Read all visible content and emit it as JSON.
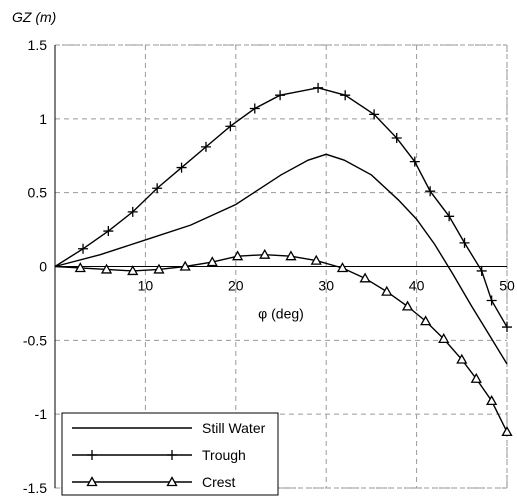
{
  "chart_data": {
    "type": "line",
    "ylabel": "GZ (m)",
    "xlabel": "φ (deg)",
    "xlim": [
      0,
      50
    ],
    "xticks": [
      10,
      20,
      30,
      40,
      50
    ],
    "ylim": [
      -1.5,
      1.5
    ],
    "yticks": [
      -1.5,
      -1,
      -0.5,
      0,
      0.5,
      1,
      1.5
    ],
    "grid": true,
    "legend": "lower left",
    "series": [
      {
        "name": "Still Water",
        "color": "#000000",
        "marker": "none",
        "x": [
          0,
          5,
          10,
          15,
          20,
          25,
          28,
          30,
          32,
          35,
          38,
          40,
          42,
          44,
          46,
          48,
          50
        ],
        "values": [
          0,
          0.08,
          0.18,
          0.28,
          0.42,
          0.62,
          0.72,
          0.76,
          0.72,
          0.62,
          0.45,
          0.32,
          0.15,
          -0.05,
          -0.26,
          -0.46,
          -0.66
        ]
      },
      {
        "name": "Trough",
        "color": "#000000",
        "marker": "plus",
        "x": [
          0,
          3.1,
          5.9,
          8.6,
          11.3,
          14,
          16.7,
          19.4,
          22.1,
          24.9,
          29.1,
          32.1,
          35.3,
          37.8,
          39.8,
          41.5,
          43.6,
          45.3,
          47.2,
          48.3,
          50
        ],
        "values": [
          0,
          0.12,
          0.24,
          0.37,
          0.53,
          0.67,
          0.81,
          0.95,
          1.07,
          1.16,
          1.21,
          1.16,
          1.03,
          0.87,
          0.71,
          0.51,
          0.34,
          0.16,
          -0.03,
          -0.23,
          -0.41
        ]
      },
      {
        "name": "Crest",
        "color": "#000000",
        "marker": "triangle",
        "x": [
          0,
          2.8,
          5.7,
          8.6,
          11.5,
          14.4,
          17.4,
          20.2,
          23.2,
          26.1,
          28.9,
          31.8,
          34.3,
          36.7,
          39,
          41,
          43,
          45,
          46.6,
          48.3,
          50
        ],
        "values": [
          0,
          -0.01,
          -0.02,
          -0.03,
          -0.02,
          0,
          0.03,
          0.07,
          0.08,
          0.07,
          0.04,
          -0.01,
          -0.08,
          -0.17,
          -0.27,
          -0.37,
          -0.49,
          -0.63,
          -0.76,
          -0.91,
          -1.12
        ]
      }
    ]
  }
}
